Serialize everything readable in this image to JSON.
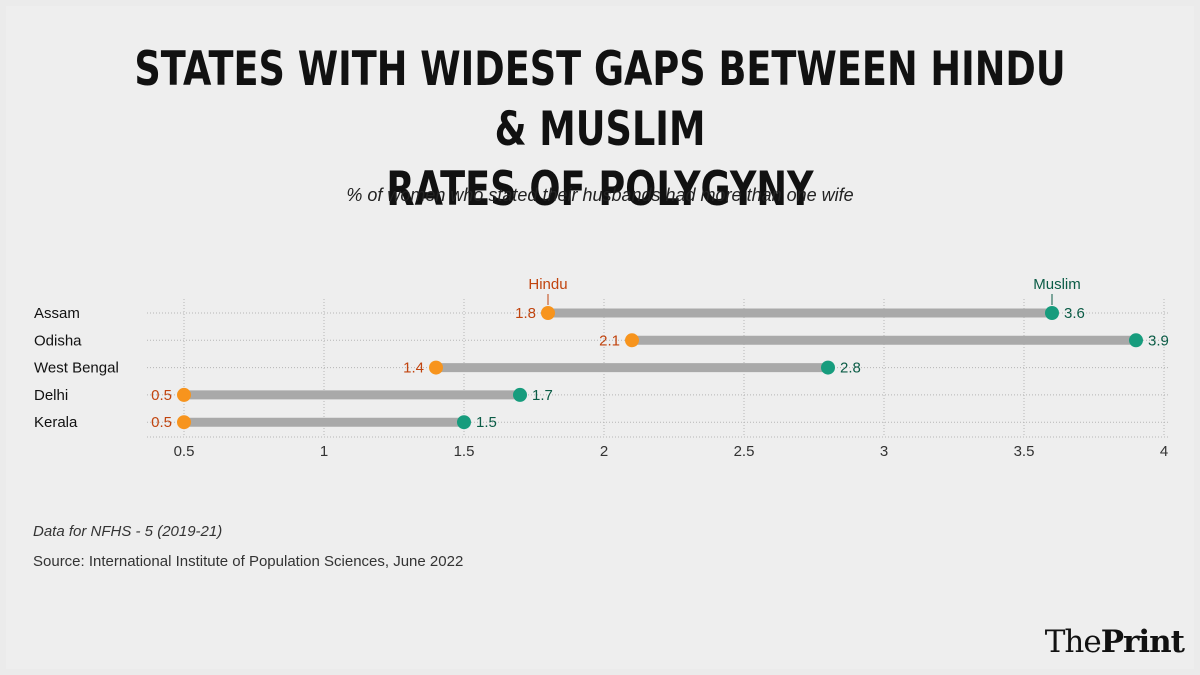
{
  "header": {
    "title_line1": "STATES WITH WIDEST GAPS BETWEEN HINDU & MUSLIM",
    "title_line2": "RATES OF POLYGYNY",
    "subtitle": "% of women who stated their husbands had more than one wife"
  },
  "footer": {
    "note": "Data for NFHS - 5 (2019-21)",
    "source": "Source: International Institute of Population Sciences, June 2022",
    "logo_the": "The",
    "logo_print": "Print"
  },
  "colors": {
    "hindu": "#f7941d",
    "hindu_label": "#c1440e",
    "muslim": "#179c7d",
    "muslim_label": "#0b5c46",
    "connector": "#a9a9a9"
  },
  "chart_data": {
    "type": "dumbbell",
    "title": "STATES WITH WIDEST GAPS BETWEEN HINDU & MUSLIM RATES OF POLYGYNY",
    "subtitle": "% of women who stated their husbands had more than one wife",
    "categories": [
      "Assam",
      "Odisha",
      "West Bengal",
      "Delhi",
      "Kerala"
    ],
    "series": [
      {
        "name": "Hindu",
        "values": [
          1.8,
          2.1,
          1.4,
          0.5,
          0.5
        ]
      },
      {
        "name": "Muslim",
        "values": [
          3.6,
          3.9,
          2.8,
          1.7,
          1.5
        ]
      }
    ],
    "xticks": [
      "0.5",
      "1",
      "1.5",
      "2",
      "2.5",
      "3",
      "3.5",
      "4"
    ],
    "xlim": [
      0.5,
      4
    ],
    "xlabel": "",
    "ylabel": ""
  }
}
